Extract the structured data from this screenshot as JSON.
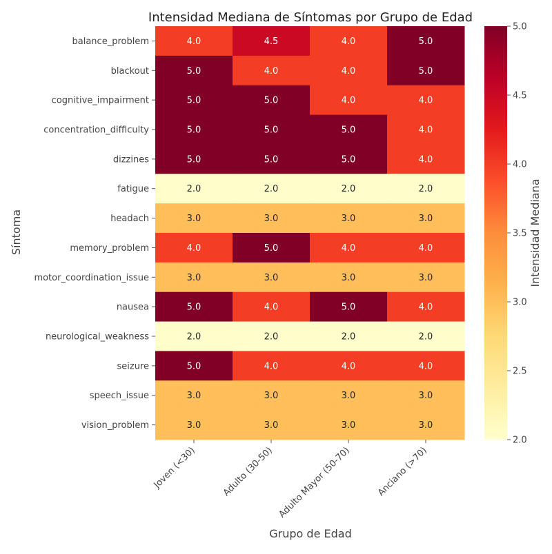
{
  "chart_data": {
    "type": "heatmap",
    "title": "Intensidad Mediana de Síntomas por Grupo de Edad",
    "xlabel": "Grupo de Edad",
    "ylabel": "Síntoma",
    "colorbar_label": "Intensidad Mediana",
    "colormap": "YlOrRd",
    "vmin": 2.0,
    "vmax": 5.0,
    "colorbar_ticks": [
      "2.0",
      "2.5",
      "3.0",
      "3.5",
      "4.0",
      "4.5",
      "5.0"
    ],
    "columns": [
      "Joven (<30)",
      "Adulto (30-50)",
      "Adulto Mayor (50-70)",
      "Anciano (>70)"
    ],
    "rows": [
      "balance_problem",
      "blackout",
      "cognitive_impairment",
      "concentration_difficulty",
      "dizzines",
      "fatigue",
      "headach",
      "memory_problem",
      "motor_coordination_issue",
      "nausea",
      "neurological_weakness",
      "seizure",
      "speech_issue",
      "vision_problem"
    ],
    "values": [
      [
        4.0,
        4.5,
        4.0,
        5.0
      ],
      [
        5.0,
        4.0,
        4.0,
        5.0
      ],
      [
        5.0,
        5.0,
        4.0,
        4.0
      ],
      [
        5.0,
        5.0,
        5.0,
        4.0
      ],
      [
        5.0,
        5.0,
        5.0,
        4.0
      ],
      [
        2.0,
        2.0,
        2.0,
        2.0
      ],
      [
        3.0,
        3.0,
        3.0,
        3.0
      ],
      [
        4.0,
        5.0,
        4.0,
        4.0
      ],
      [
        3.0,
        3.0,
        3.0,
        3.0
      ],
      [
        5.0,
        4.0,
        5.0,
        4.0
      ],
      [
        2.0,
        2.0,
        2.0,
        2.0
      ],
      [
        5.0,
        4.0,
        4.0,
        4.0
      ],
      [
        3.0,
        3.0,
        3.0,
        3.0
      ],
      [
        3.0,
        3.0,
        3.0,
        3.0
      ]
    ],
    "annotations": [
      [
        "4.0",
        "4.5",
        "4.0",
        "5.0"
      ],
      [
        "5.0",
        "4.0",
        "4.0",
        "5.0"
      ],
      [
        "5.0",
        "5.0",
        "4.0",
        "4.0"
      ],
      [
        "5.0",
        "5.0",
        "5.0",
        "4.0"
      ],
      [
        "5.0",
        "5.0",
        "5.0",
        "4.0"
      ],
      [
        "2.0",
        "2.0",
        "2.0",
        "2.0"
      ],
      [
        "3.0",
        "3.0",
        "3.0",
        "3.0"
      ],
      [
        "4.0",
        "5.0",
        "4.0",
        "4.0"
      ],
      [
        "3.0",
        "3.0",
        "3.0",
        "3.0"
      ],
      [
        "5.0",
        "4.0",
        "5.0",
        "4.0"
      ],
      [
        "2.0",
        "2.0",
        "2.0",
        "2.0"
      ],
      [
        "5.0",
        "4.0",
        "4.0",
        "4.0"
      ],
      [
        "3.0",
        "3.0",
        "3.0",
        "3.0"
      ],
      [
        "3.0",
        "3.0",
        "3.0",
        "3.0"
      ]
    ]
  }
}
